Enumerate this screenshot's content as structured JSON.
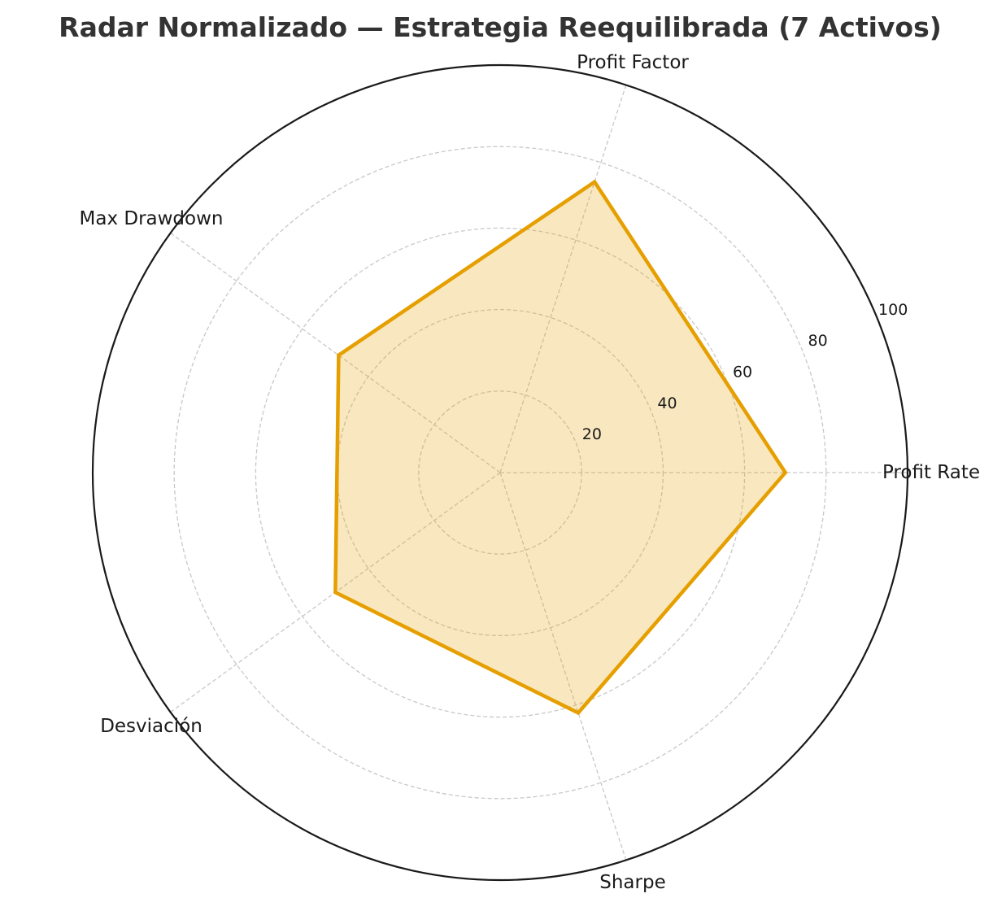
{
  "chart_data": {
    "type": "radar",
    "title": "Radar Normalizado — Estrategia Reequilibrada (7 Activos)",
    "categories": [
      "Profit Rate",
      "Profit Factor",
      "Max Drawdown",
      "Desviación",
      "Sharpe"
    ],
    "series": [
      {
        "name": "Estrategia Reequilibrada",
        "values": [
          70,
          75,
          49,
          50,
          62
        ]
      }
    ],
    "rlim": [
      0,
      100
    ],
    "rticks": [
      20,
      40,
      60,
      80,
      100
    ],
    "rtick_labels": [
      "20",
      "40",
      "60",
      "80",
      "100"
    ],
    "grid": true,
    "grid_style": "dashed",
    "legend": null
  },
  "style": {
    "line_color": "#E69F00",
    "fill_color": "#E69F00",
    "fill_opacity": 0.25,
    "grid_color": "#c8c8c8",
    "outer_circle_color": "#1a1a1a",
    "title_color": "#333333"
  }
}
